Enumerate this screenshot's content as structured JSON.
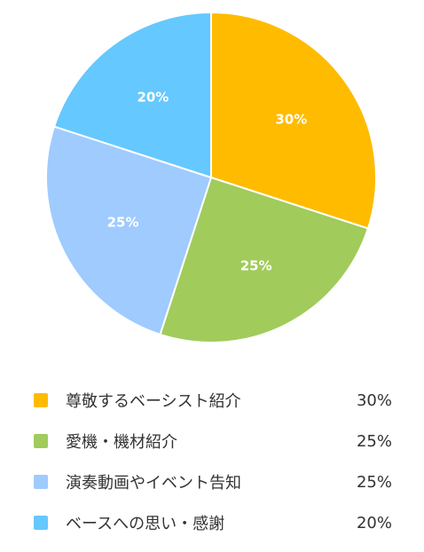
{
  "chart_data": {
    "type": "pie",
    "title": "",
    "legend_position": "bottom",
    "slices": [
      {
        "label": "尊敬するベーシスト紹介",
        "value": 30,
        "value_label": "30%",
        "color": "#FFBB00"
      },
      {
        "label": "愛機・機材紹介",
        "value": 25,
        "value_label": "25%",
        "color": "#A1CB5B"
      },
      {
        "label": "演奏動画やイベント告知",
        "value": 25,
        "value_label": "25%",
        "color": "#9FCBFF"
      },
      {
        "label": "ベースへの思い・感謝",
        "value": 20,
        "value_label": "20%",
        "color": "#65C8FE"
      }
    ]
  }
}
